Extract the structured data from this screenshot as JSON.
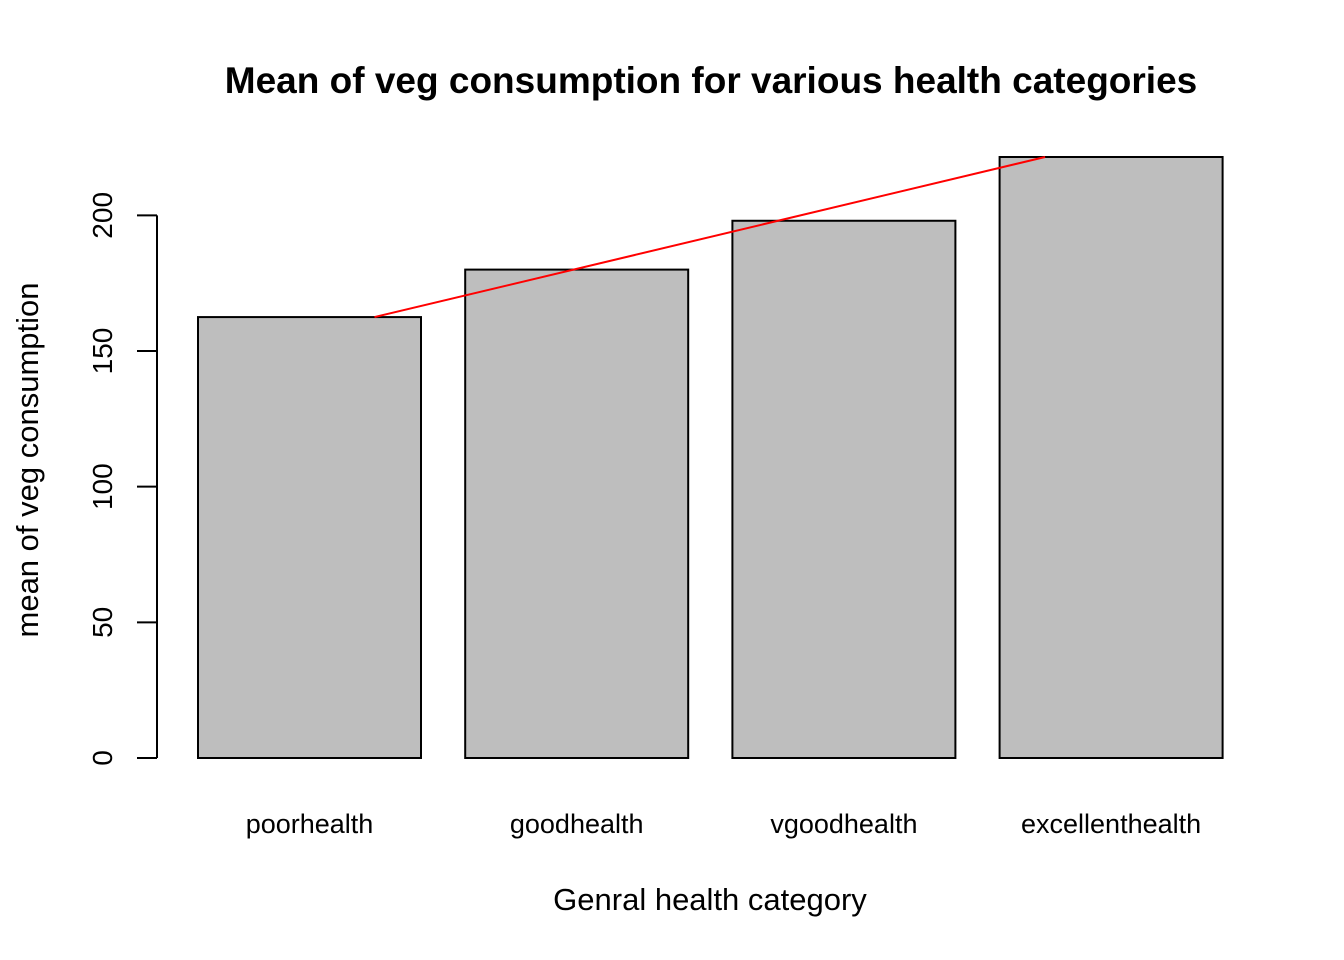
{
  "chart_data": {
    "type": "bar",
    "title": "Mean of veg consumption for various health categories",
    "xlabel": "Genral health category",
    "ylabel": "mean of veg consumption",
    "categories": [
      "poorhealth",
      "goodhealth",
      "vgoodhealth",
      "excellenthealth"
    ],
    "values": [
      162.5,
      180,
      198,
      221.5
    ],
    "ylim": [
      0,
      221.5
    ],
    "yticks": [
      0,
      50,
      100,
      150,
      200
    ],
    "ytick_labels": [
      "0",
      "50",
      "100",
      "150",
      "200"
    ],
    "bar_color": "#bebebe",
    "overlay_line": {
      "color": "#ff0000",
      "from": {
        "category": "poorhealth",
        "value": 162.5
      },
      "to": {
        "category": "excellenthealth",
        "value": 221.5
      }
    },
    "grid": false,
    "legend": "none"
  }
}
